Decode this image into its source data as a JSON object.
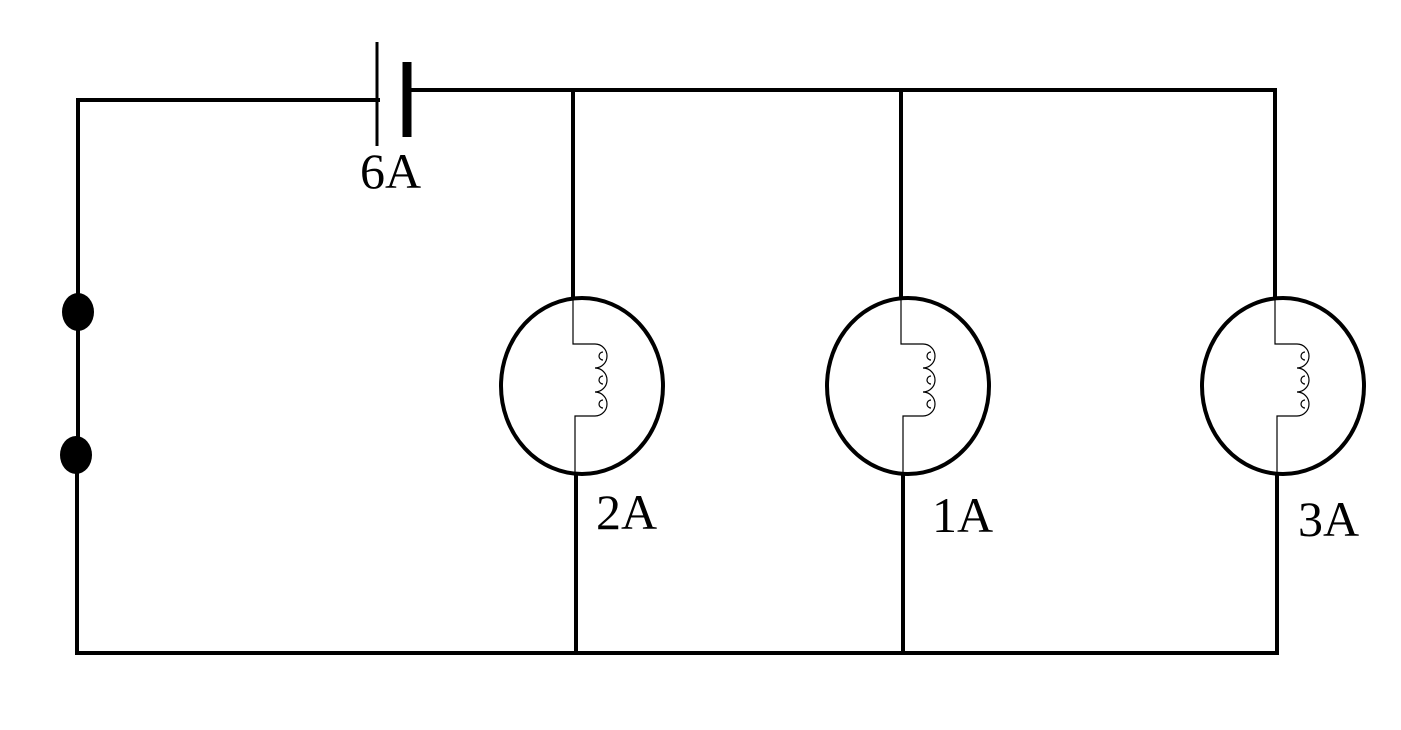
{
  "diagram": {
    "type": "parallel-circuit",
    "battery_label": "6A",
    "lamp_labels": [
      "2A",
      "1A",
      "3A"
    ],
    "line_color": "#000000",
    "background": "#ffffff"
  }
}
